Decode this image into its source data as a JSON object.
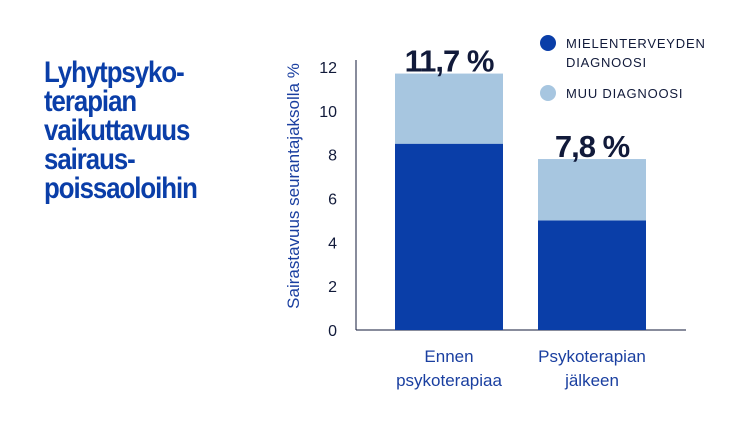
{
  "title": "Lyhytpsyko-\nterapian\nvaikuttavuus\nsairaus-\npoissaoloihin",
  "chart_data": {
    "type": "bar",
    "stacked": true,
    "title": "Lyhytpsyko-terapian vaikuttavuus sairaus-poissaoloihin",
    "ylabel": "Sairastavuus seurantajaksolla %",
    "xlabel": "",
    "ylim": [
      0,
      12
    ],
    "yticks": [
      0,
      2,
      4,
      6,
      8,
      10,
      12
    ],
    "categories": [
      "Ennen psykoterapiaa",
      "Psykoterapian jälkeen"
    ],
    "category_lines": [
      [
        "Ennen",
        "psykoterapiaa"
      ],
      [
        "Psykoterapian",
        "jälkeen"
      ]
    ],
    "series": [
      {
        "name": "MIELENTERVEYDEN DIAGNOOSI",
        "values": [
          8.5,
          5.0
        ],
        "color": "#0a3ea8"
      },
      {
        "name": "MUU DIAGNOOSI",
        "values": [
          3.2,
          2.8
        ],
        "color": "#a7c6e0"
      }
    ],
    "totals": [
      11.7,
      7.8
    ],
    "total_labels": [
      "11,7 %",
      "7,8 %"
    ],
    "legend_lines": [
      [
        "MIELENTERVEYDEN",
        "DIAGNOOSI"
      ],
      [
        "MUU DIAGNOOSI"
      ]
    ],
    "legend_position": "top-right",
    "grid": false
  }
}
